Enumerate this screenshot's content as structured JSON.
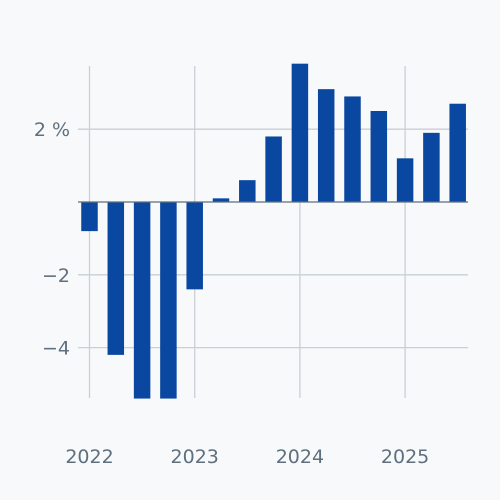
{
  "chart_data": {
    "type": "bar",
    "x_start": "2022 Q1",
    "categories": [
      "2022 Q1",
      "2022 Q2",
      "2022 Q3",
      "2022 Q4",
      "2023 Q1",
      "2023 Q2",
      "2023 Q3",
      "2023 Q4",
      "2024 Q1",
      "2024 Q2",
      "2024 Q3",
      "2024 Q4",
      "2025 Q1",
      "2025 Q2",
      "2025 Q3"
    ],
    "series": [
      {
        "values": [
          -0.8,
          -4.2,
          -5.4,
          -5.4,
          -2.4,
          0.1,
          0.6,
          1.8,
          3.8,
          3.1,
          2.9,
          2.5,
          1.2,
          1.9,
          2.7
        ]
      }
    ],
    "x_ticks": [
      {
        "label": "2022",
        "index": 0
      },
      {
        "label": "2023",
        "index": 4
      },
      {
        "label": "2024",
        "index": 8
      },
      {
        "label": "2025",
        "index": 12
      }
    ],
    "y_ticks": [
      {
        "label": "2 %",
        "value": 2
      },
      {
        "label": "−2",
        "value": -2
      },
      {
        "label": "−4",
        "value": -4
      }
    ],
    "ylim": [
      -5.4,
      3.8
    ],
    "grid": true,
    "bar_color": "#0a47a1",
    "grid_color": "#c9d0d5",
    "axis_color": "#5f6f7e",
    "title": "",
    "xlabel": "",
    "ylabel": ""
  }
}
